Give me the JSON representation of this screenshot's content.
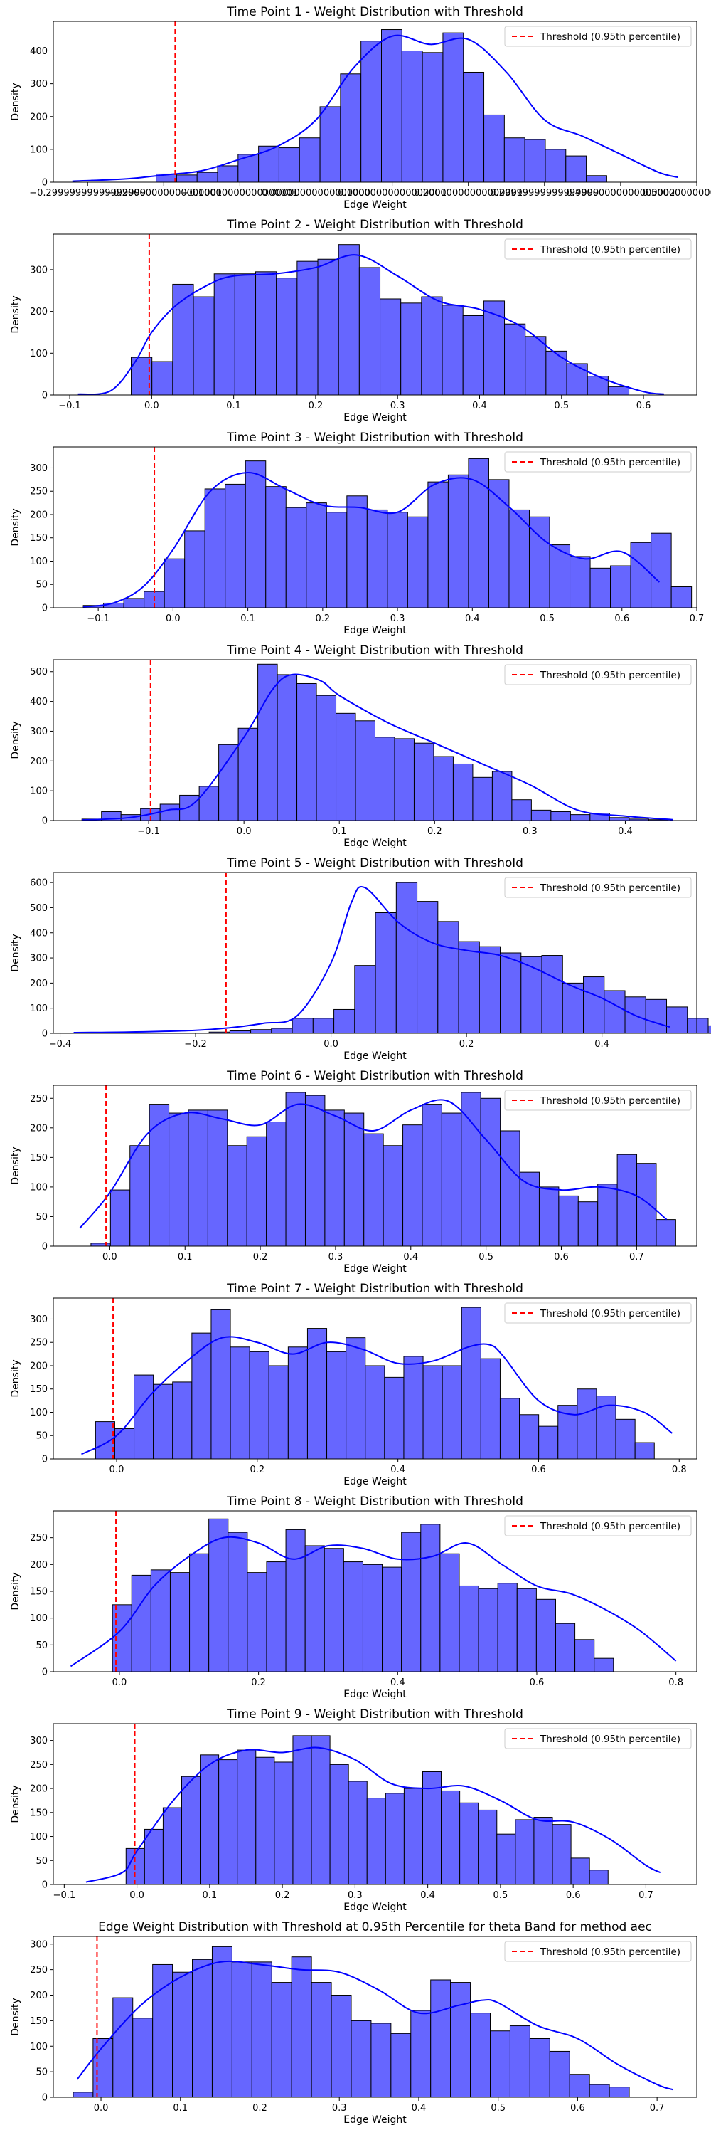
{
  "colors": {
    "bar_fill": "#6666ff",
    "bar_edge": "#000000",
    "kde_line": "#0000ff",
    "threshold_line": "#ff0000"
  },
  "legend_label": "Threshold (0.95th percentile)",
  "chart_data": [
    {
      "type": "bar",
      "title": "Time Point 1 - Weight Distribution with Threshold",
      "xlabel": "Edge Weight",
      "ylabel": "Density",
      "xlim": [
        -0.345,
        0.5
      ],
      "ylim": [
        0,
        490
      ],
      "xticks": [
        -0.3,
        -0.2,
        -0.1,
        0.0,
        0.1,
        0.2,
        0.3,
        0.4,
        0.5
      ],
      "yticks": [
        0,
        100,
        200,
        300,
        400
      ],
      "bin_start": -0.21,
      "bin_width": 0.0269,
      "values": [
        25,
        22,
        30,
        50,
        85,
        110,
        105,
        135,
        230,
        330,
        430,
        465,
        400,
        395,
        455,
        335,
        205,
        135,
        130,
        100,
        80,
        20
      ],
      "threshold": -0.185,
      "kde_x": [
        -0.32,
        -0.25,
        -0.2,
        -0.15,
        -0.1,
        -0.05,
        0.0,
        0.05,
        0.1,
        0.15,
        0.2,
        0.25,
        0.3,
        0.35,
        0.4,
        0.45,
        0.475
      ],
      "kde_y": [
        3,
        10,
        22,
        35,
        70,
        110,
        190,
        350,
        445,
        420,
        435,
        335,
        190,
        140,
        85,
        30,
        15
      ],
      "legend": "top-right"
    },
    {
      "type": "bar",
      "title": "Time Point 2 - Weight Distribution with Threshold",
      "xlabel": "Edge Weight",
      "ylabel": "Density",
      "xlim": [
        -0.12,
        0.665
      ],
      "ylim": [
        0,
        385
      ],
      "xticks": [
        -0.1,
        0.0,
        0.1,
        0.2,
        0.3,
        0.4,
        0.5,
        0.6
      ],
      "yticks": [
        0,
        100,
        200,
        300
      ],
      "bin_start": -0.025,
      "bin_width": 0.0253,
      "values": [
        90,
        80,
        265,
        235,
        290,
        290,
        295,
        280,
        320,
        325,
        360,
        305,
        230,
        220,
        235,
        215,
        190,
        225,
        170,
        140,
        105,
        75,
        45,
        20
      ],
      "threshold": -0.003,
      "kde_x": [
        -0.09,
        -0.05,
        -0.02,
        0.0,
        0.03,
        0.07,
        0.1,
        0.15,
        0.2,
        0.25,
        0.3,
        0.35,
        0.4,
        0.45,
        0.5,
        0.55,
        0.6,
        0.625
      ],
      "kde_y": [
        2,
        10,
        80,
        150,
        215,
        265,
        285,
        290,
        305,
        335,
        285,
        225,
        205,
        165,
        90,
        40,
        8,
        2
      ],
      "legend": "top-right"
    },
    {
      "type": "bar",
      "title": "Time Point 3 - Weight Distribution with Threshold",
      "xlabel": "Edge Weight",
      "ylabel": "Density",
      "xlim": [
        -0.16,
        0.7
      ],
      "ylim": [
        0,
        345
      ],
      "xticks": [
        -0.1,
        0.0,
        0.1,
        0.2,
        0.3,
        0.4,
        0.5,
        0.6,
        0.7
      ],
      "yticks": [
        0,
        50,
        100,
        150,
        200,
        250,
        300
      ],
      "bin_start": -0.12,
      "bin_width": 0.0271,
      "values": [
        5,
        10,
        20,
        35,
        105,
        165,
        255,
        265,
        315,
        260,
        215,
        225,
        205,
        240,
        210,
        205,
        195,
        270,
        285,
        320,
        275,
        210,
        195,
        135,
        110,
        85,
        90,
        140,
        160,
        45
      ],
      "threshold": -0.025,
      "kde_x": [
        -0.12,
        -0.08,
        -0.04,
        0.0,
        0.05,
        0.1,
        0.15,
        0.2,
        0.25,
        0.3,
        0.35,
        0.4,
        0.45,
        0.5,
        0.55,
        0.6,
        0.65
      ],
      "kde_y": [
        2,
        10,
        45,
        125,
        250,
        290,
        255,
        220,
        215,
        205,
        265,
        275,
        215,
        140,
        105,
        120,
        55
      ],
      "legend": "top-right"
    },
    {
      "type": "bar",
      "title": "Time Point 4 - Weight Distribution with Threshold",
      "xlabel": "Edge Weight",
      "ylabel": "Density",
      "xlim": [
        -0.2,
        0.475
      ],
      "ylim": [
        0,
        540
      ],
      "xticks": [
        -0.1,
        0.0,
        0.1,
        0.2,
        0.3,
        0.4
      ],
      "yticks": [
        0,
        100,
        200,
        300,
        400,
        500
      ],
      "bin_start": -0.17,
      "bin_width": 0.0205,
      "values": [
        5,
        30,
        20,
        40,
        55,
        85,
        115,
        255,
        310,
        525,
        490,
        460,
        420,
        360,
        335,
        280,
        275,
        260,
        215,
        190,
        145,
        165,
        70,
        35,
        30,
        20,
        25,
        10,
        5,
        3
      ],
      "threshold": -0.098,
      "kde_x": [
        -0.17,
        -0.12,
        -0.08,
        -0.05,
        0.0,
        0.03,
        0.05,
        0.08,
        0.1,
        0.15,
        0.2,
        0.25,
        0.3,
        0.35,
        0.4,
        0.45
      ],
      "kde_y": [
        2,
        10,
        35,
        65,
        280,
        440,
        490,
        470,
        420,
        330,
        260,
        190,
        120,
        35,
        15,
        3
      ],
      "legend": "top-right"
    },
    {
      "type": "bar",
      "title": "Time Point 5 - Weight Distribution with Threshold",
      "xlabel": "Edge Weight",
      "ylabel": "Density",
      "xlim": [
        -0.41,
        0.54
      ],
      "ylim": [
        0,
        640
      ],
      "xticks": [
        -0.4,
        -0.2,
        0.0,
        0.2,
        0.4
      ],
      "yticks": [
        0,
        100,
        200,
        300,
        400,
        500,
        600
      ],
      "bin_start": -0.18,
      "bin_width": 0.0307,
      "values": [
        5,
        10,
        15,
        20,
        60,
        60,
        95,
        270,
        480,
        600,
        525,
        445,
        365,
        345,
        320,
        305,
        310,
        200,
        225,
        170,
        145,
        135,
        105,
        60,
        30
      ],
      "threshold": -0.155,
      "kde_x": [
        -0.38,
        -0.3,
        -0.2,
        -0.15,
        -0.1,
        -0.05,
        0.0,
        0.03,
        0.05,
        0.1,
        0.15,
        0.2,
        0.25,
        0.3,
        0.35,
        0.4,
        0.45,
        0.5
      ],
      "kde_y": [
        3,
        5,
        12,
        22,
        40,
        70,
        280,
        520,
        580,
        440,
        360,
        330,
        310,
        260,
        195,
        140,
        70,
        25
      ],
      "legend": "top-right"
    },
    {
      "type": "bar",
      "title": "Time Point 6 - Weight Distribution with Threshold",
      "xlabel": "Edge Weight",
      "ylabel": "Density",
      "xlim": [
        -0.075,
        0.78
      ],
      "ylim": [
        0,
        272
      ],
      "xticks": [
        0.0,
        0.1,
        0.2,
        0.3,
        0.4,
        0.5,
        0.6,
        0.7
      ],
      "yticks": [
        0,
        50,
        100,
        150,
        200,
        250
      ],
      "bin_start": -0.025,
      "bin_width": 0.0259,
      "values": [
        5,
        95,
        170,
        240,
        225,
        230,
        230,
        170,
        185,
        210,
        260,
        255,
        230,
        225,
        190,
        170,
        205,
        240,
        225,
        260,
        250,
        195,
        125,
        100,
        85,
        75,
        105,
        155,
        140,
        45
      ],
      "threshold": -0.005,
      "kde_x": [
        -0.04,
        0.0,
        0.05,
        0.1,
        0.15,
        0.2,
        0.25,
        0.3,
        0.35,
        0.4,
        0.45,
        0.5,
        0.55,
        0.6,
        0.65,
        0.7,
        0.74
      ],
      "kde_y": [
        30,
        90,
        190,
        225,
        215,
        205,
        240,
        220,
        195,
        230,
        245,
        180,
        110,
        95,
        100,
        85,
        45
      ],
      "legend": "top-right"
    },
    {
      "type": "bar",
      "title": "Time Point 7 - Weight Distribution with Threshold",
      "xlabel": "Edge Weight",
      "ylabel": "Density",
      "xlim": [
        -0.09,
        0.825
      ],
      "ylim": [
        0,
        345
      ],
      "xticks": [
        0.0,
        0.2,
        0.4,
        0.6,
        0.8
      ],
      "yticks": [
        0,
        50,
        100,
        150,
        200,
        250,
        300
      ],
      "bin_start": -0.03,
      "bin_width": 0.0274,
      "values": [
        80,
        65,
        180,
        160,
        165,
        270,
        320,
        240,
        230,
        200,
        240,
        280,
        230,
        260,
        200,
        175,
        220,
        200,
        200,
        325,
        215,
        130,
        95,
        70,
        115,
        150,
        135,
        85,
        35
      ],
      "threshold": -0.005,
      "kde_x": [
        -0.05,
        0.0,
        0.05,
        0.1,
        0.15,
        0.2,
        0.25,
        0.3,
        0.35,
        0.4,
        0.45,
        0.5,
        0.53,
        0.55,
        0.6,
        0.65,
        0.7,
        0.75,
        0.79
      ],
      "kde_y": [
        10,
        50,
        140,
        210,
        260,
        250,
        225,
        250,
        235,
        205,
        210,
        240,
        245,
        220,
        125,
        95,
        115,
        100,
        55
      ],
      "legend": "top-right"
    },
    {
      "type": "bar",
      "title": "Time Point 8 - Weight Distribution with Threshold",
      "xlabel": "Edge Weight",
      "ylabel": "Density",
      "xlim": [
        -0.095,
        0.83
      ],
      "ylim": [
        0,
        300
      ],
      "xticks": [
        0.0,
        0.2,
        0.4,
        0.6,
        0.8
      ],
      "yticks": [
        0,
        50,
        100,
        150,
        200,
        250
      ],
      "bin_start": -0.01,
      "bin_width": 0.0277,
      "values": [
        125,
        180,
        190,
        185,
        220,
        285,
        260,
        185,
        205,
        265,
        235,
        230,
        205,
        200,
        195,
        260,
        275,
        220,
        160,
        155,
        165,
        155,
        135,
        90,
        60,
        25
      ],
      "threshold": -0.005,
      "kde_x": [
        -0.07,
        0.0,
        0.05,
        0.1,
        0.15,
        0.2,
        0.25,
        0.3,
        0.35,
        0.4,
        0.45,
        0.5,
        0.55,
        0.6,
        0.65,
        0.7,
        0.75,
        0.8
      ],
      "kde_y": [
        10,
        75,
        160,
        215,
        250,
        240,
        210,
        235,
        230,
        210,
        215,
        240,
        200,
        160,
        145,
        115,
        75,
        20
      ],
      "legend": "top-right"
    },
    {
      "type": "bar",
      "title": "Time Point 9 - Weight Distribution with Threshold",
      "xlabel": "Edge Weight",
      "ylabel": "Density",
      "xlim": [
        -0.115,
        0.77
      ],
      "ylim": [
        0,
        335
      ],
      "xticks": [
        -0.1,
        0.0,
        0.1,
        0.2,
        0.3,
        0.4,
        0.5,
        0.6,
        0.7
      ],
      "yticks": [
        0,
        50,
        100,
        150,
        200,
        250,
        300
      ],
      "bin_start": -0.015,
      "bin_width": 0.0255,
      "values": [
        75,
        115,
        160,
        225,
        270,
        260,
        280,
        265,
        255,
        310,
        310,
        250,
        215,
        180,
        190,
        200,
        235,
        195,
        170,
        155,
        105,
        135,
        140,
        125,
        55,
        30
      ],
      "threshold": -0.003,
      "kde_x": [
        -0.07,
        -0.02,
        0.0,
        0.05,
        0.1,
        0.15,
        0.2,
        0.25,
        0.3,
        0.35,
        0.4,
        0.45,
        0.5,
        0.55,
        0.6,
        0.65,
        0.7,
        0.72
      ],
      "kde_y": [
        5,
        25,
        70,
        175,
        250,
        280,
        275,
        285,
        260,
        210,
        200,
        205,
        175,
        135,
        130,
        95,
        40,
        25
      ],
      "legend": "top-right"
    },
    {
      "type": "bar",
      "title": "Edge Weight Distribution with Threshold at 0.95th Percentile for theta Band for method aec",
      "xlabel": "Edge Weight",
      "ylabel": "Density",
      "xlim": [
        -0.06,
        0.75
      ],
      "ylim": [
        0,
        315
      ],
      "xticks": [
        0.0,
        0.1,
        0.2,
        0.3,
        0.4,
        0.5,
        0.6,
        0.7
      ],
      "yticks": [
        0,
        50,
        100,
        150,
        200,
        250,
        300
      ],
      "bin_start": -0.035,
      "bin_width": 0.025,
      "values": [
        10,
        115,
        195,
        155,
        260,
        245,
        270,
        295,
        265,
        265,
        225,
        275,
        225,
        200,
        150,
        145,
        125,
        170,
        230,
        225,
        165,
        130,
        140,
        115,
        90,
        45,
        25,
        20
      ],
      "threshold": -0.005,
      "kde_x": [
        -0.03,
        0.0,
        0.05,
        0.1,
        0.15,
        0.2,
        0.25,
        0.3,
        0.35,
        0.4,
        0.45,
        0.48,
        0.5,
        0.55,
        0.6,
        0.65,
        0.7,
        0.72
      ],
      "kde_y": [
        35,
        95,
        180,
        235,
        265,
        260,
        250,
        245,
        210,
        165,
        180,
        190,
        185,
        140,
        115,
        65,
        25,
        15
      ],
      "legend": "top-right"
    }
  ]
}
